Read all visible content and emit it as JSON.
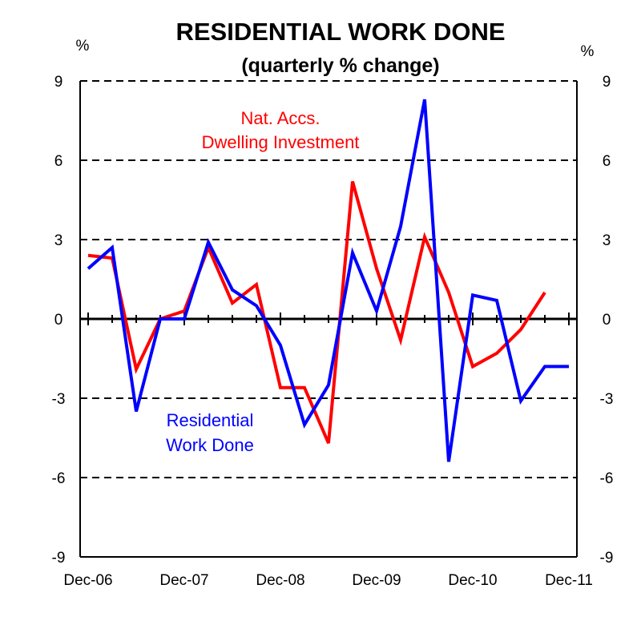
{
  "chart_data": {
    "type": "line",
    "title": "RESIDENTIAL WORK DONE",
    "subtitle": "(quarterly % change)",
    "y_unit_left": "%",
    "y_unit_right": "%",
    "ylim": [
      -9,
      9
    ],
    "yticks": [
      9,
      6,
      3,
      0,
      -3,
      -6,
      -9
    ],
    "gridlines": "dashed horizontal at 3, 6, -3, -6; solid at 0",
    "x_tick_labels": [
      "Dec-06",
      "Dec-07",
      "Dec-08",
      "Dec-09",
      "Dec-10",
      "Dec-11"
    ],
    "x_quarters": [
      "Dec-06",
      "Mar-07",
      "Jun-07",
      "Sep-07",
      "Dec-07",
      "Mar-08",
      "Jun-08",
      "Sep-08",
      "Dec-08",
      "Mar-09",
      "Jun-09",
      "Sep-09",
      "Dec-09",
      "Mar-10",
      "Jun-10",
      "Sep-10",
      "Dec-10",
      "Mar-11",
      "Jun-11",
      "Sep-11",
      "Dec-11"
    ],
    "series": [
      {
        "name": "Nat. Accs. Dwelling Investment",
        "color": "#ff0000",
        "values": [
          2.4,
          2.3,
          -1.9,
          0.0,
          0.3,
          2.7,
          0.6,
          1.3,
          -2.6,
          -2.6,
          -4.7,
          5.2,
          1.9,
          -0.8,
          3.1,
          1.0,
          -1.8,
          -1.3,
          -0.4,
          1.0,
          null
        ]
      },
      {
        "name": "Residential Work Done",
        "color": "#0000ff",
        "values": [
          1.9,
          2.7,
          -3.5,
          0.0,
          0.0,
          2.9,
          1.1,
          0.5,
          -1.0,
          -4.0,
          -2.5,
          2.5,
          0.3,
          3.5,
          8.3,
          -5.4,
          0.9,
          0.7,
          -3.1,
          -1.8,
          -1.8
        ]
      }
    ],
    "annotations": [
      {
        "lines": [
          "Nat. Accs.",
          "Dwelling Investment"
        ],
        "color": "#ff0000"
      },
      {
        "lines": [
          "Residential",
          "Work Done"
        ],
        "color": "#0000ff"
      }
    ]
  }
}
